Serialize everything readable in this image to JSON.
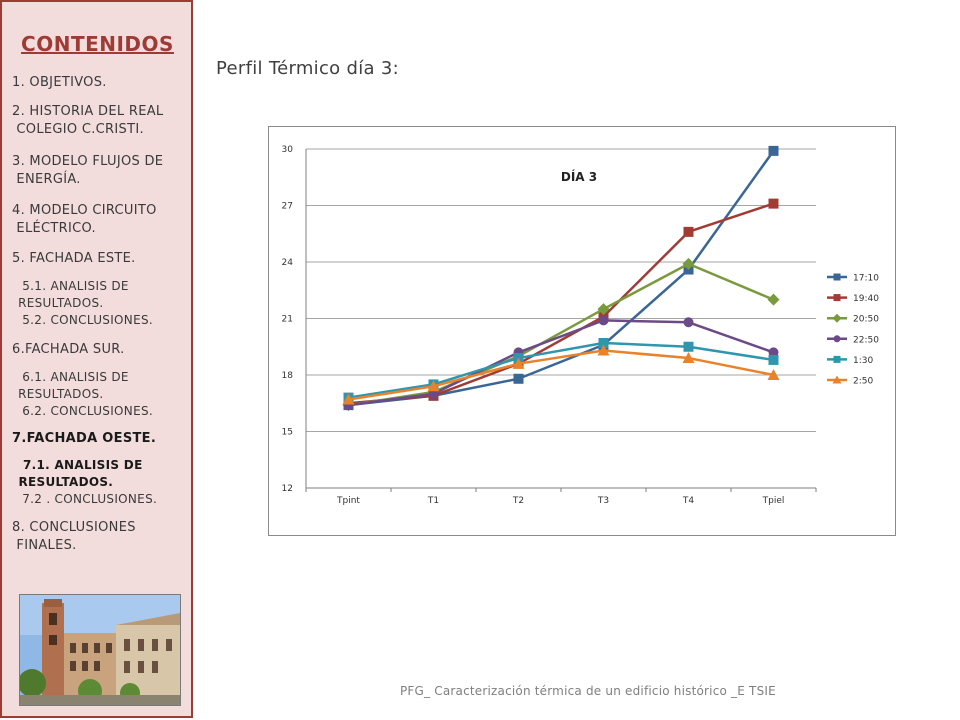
{
  "sidebar": {
    "title": "CONTENIDOS",
    "items": [
      {
        "label": "1. OBJETIVOS."
      },
      {
        "label": "2. HISTORIA DEL REAL\n COLEGIO C.CRISTI."
      },
      {
        "label": "3. MODELO FLUJOS DE\n ENERGÍA."
      },
      {
        "label": "4. MODELO CIRCUITO\n ELÉCTRICO."
      },
      {
        "label": "5. FACHADA ESTE."
      },
      {
        "label": "  5.1. ANALISIS DE\n RESULTADOS.\n  5.2. CONCLUSIONES."
      },
      {
        "label": "6.FACHADA SUR."
      },
      {
        "label": "  6.1. ANALISIS DE\n RESULTADOS.\n  6.2. CONCLUSIONES."
      },
      {
        "label": "7.FACHADA OESTE."
      },
      {
        "label": "  7.1. ANALISIS DE\n RESULTADOS."
      },
      {
        "label": "  7.2 . CONCLUSIONES."
      },
      {
        "label": "8. CONCLUSIONES\n FINALES."
      }
    ]
  },
  "main": {
    "title": "Perfil Térmico día 3:"
  },
  "footer": "PFG_ Caracterización térmica de un edificio histórico _E TSIE",
  "chart_data": {
    "type": "line",
    "title": "DÍA 3",
    "categories": [
      "Tpint",
      "T1",
      "T2",
      "T3",
      "T4",
      "Tpiel"
    ],
    "ylim": [
      12,
      30
    ],
    "yticks": [
      "12",
      "15",
      "18",
      "21",
      "24",
      "27",
      "30"
    ],
    "grid": true,
    "legend_position": "right",
    "series": [
      {
        "name": "17:10",
        "color": "#3a6696",
        "marker": "square",
        "values": [
          16.4,
          16.9,
          17.8,
          19.6,
          23.6,
          29.9
        ]
      },
      {
        "name": "19:40",
        "color": "#a23b34",
        "marker": "square",
        "values": [
          16.5,
          16.9,
          18.6,
          21.1,
          25.6,
          27.1
        ]
      },
      {
        "name": "20:50",
        "color": "#7a9a3e",
        "marker": "diamond",
        "values": [
          16.4,
          17.1,
          19.0,
          21.5,
          23.9,
          22.0
        ]
      },
      {
        "name": "22:50",
        "color": "#6b4a87",
        "marker": "circle",
        "values": [
          16.4,
          17.0,
          19.2,
          20.9,
          20.8,
          19.2
        ]
      },
      {
        "name": "1:30",
        "color": "#2f96ad",
        "marker": "square",
        "values": [
          16.8,
          17.5,
          18.9,
          19.7,
          19.5,
          18.8
        ]
      },
      {
        "name": "2:50",
        "color": "#e8822b",
        "marker": "triangle",
        "values": [
          16.7,
          17.4,
          18.6,
          19.3,
          18.9,
          18.0
        ]
      }
    ]
  }
}
